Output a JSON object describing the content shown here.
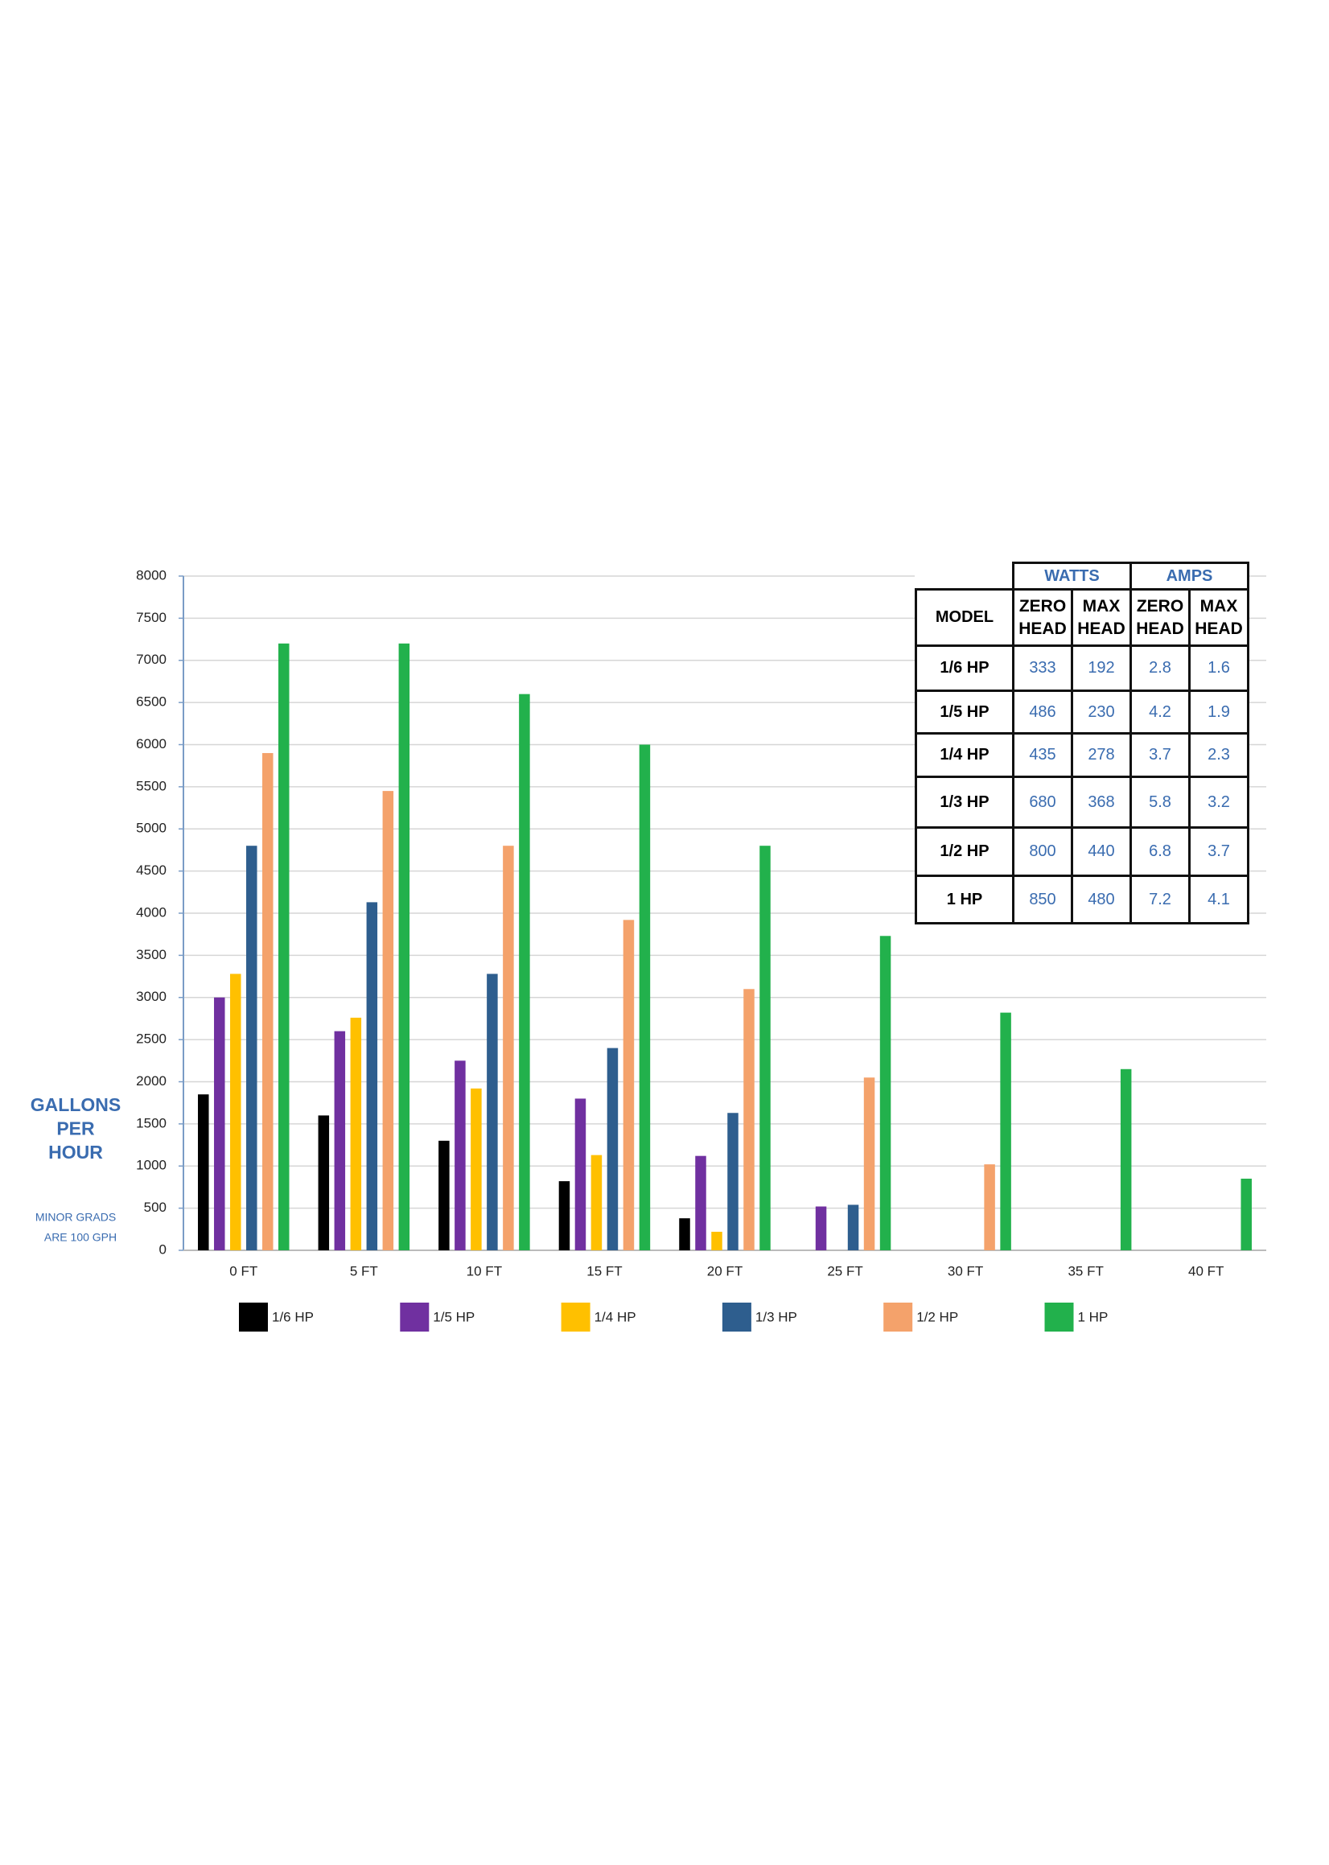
{
  "chart_data": {
    "type": "bar",
    "y_label": [
      "GALLONS",
      "PER",
      "HOUR"
    ],
    "note": [
      "MINOR GRADS",
      "ARE 100 GPH"
    ],
    "categories": [
      "0 FT",
      "5 FT",
      "10 FT",
      "15 FT",
      "20 FT",
      "25 FT",
      "30 FT",
      "35 FT",
      "40 FT"
    ],
    "series": [
      {
        "name": "1/6 HP",
        "color": "#000000",
        "values": [
          1850,
          1600,
          1300,
          820,
          380,
          null,
          null,
          null,
          null
        ]
      },
      {
        "name": "1/5 HP",
        "color": "#7030a0",
        "values": [
          3000,
          2600,
          2250,
          1800,
          1120,
          520,
          null,
          null,
          null
        ]
      },
      {
        "name": "1/4 HP",
        "color": "#ffc000",
        "values": [
          3280,
          2760,
          1920,
          1130,
          220,
          null,
          null,
          null,
          null
        ]
      },
      {
        "name": "1/3 HP",
        "color": "#2e5e8e",
        "values": [
          4800,
          4130,
          3280,
          2400,
          1630,
          540,
          null,
          null,
          null
        ]
      },
      {
        "name": "1/2 HP",
        "color": "#f4a26b",
        "values": [
          5900,
          5450,
          4800,
          3920,
          3100,
          2050,
          1020,
          null,
          null
        ]
      },
      {
        "name": "1 HP",
        "color": "#22b14c",
        "values": [
          7200,
          7200,
          6600,
          6000,
          4800,
          3730,
          2820,
          2150,
          850
        ]
      }
    ],
    "ylim": [
      0,
      8000
    ],
    "yticks": [
      0,
      500,
      1000,
      1500,
      2000,
      2500,
      3000,
      3500,
      4000,
      4500,
      5000,
      5500,
      6000,
      6500,
      7000,
      7500,
      8000
    ],
    "grid": true
  },
  "table": {
    "group_headers": [
      "WATTS",
      "AMPS"
    ],
    "headers": [
      "MODEL",
      "ZERO HEAD",
      "MAX HEAD",
      "ZERO HEAD",
      "MAX HEAD"
    ],
    "rows": [
      [
        "1/6 HP",
        333,
        192,
        2.8,
        1.6
      ],
      [
        "1/5 HP",
        486,
        230,
        4.2,
        1.9
      ],
      [
        "1/4 HP",
        435,
        278,
        3.7,
        2.3
      ],
      [
        "1/3 HP",
        680,
        368,
        5.8,
        3.2
      ],
      [
        "1/2 HP",
        800,
        440,
        6.8,
        3.7
      ],
      [
        "1 HP",
        850,
        480,
        7.2,
        4.1
      ]
    ]
  }
}
